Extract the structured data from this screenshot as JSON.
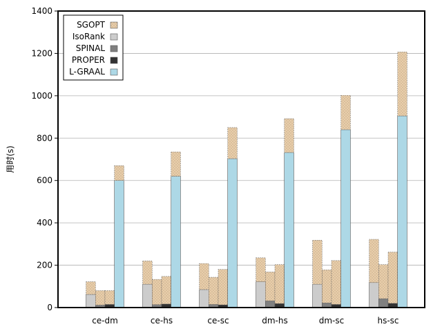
{
  "chart_data": {
    "type": "bar",
    "title": "",
    "xlabel": "",
    "ylabel": "用时(s)",
    "ylim": [
      0,
      1400
    ],
    "yticks": [
      0,
      200,
      400,
      600,
      800,
      1000,
      1200,
      1400
    ],
    "grid": "horizontal",
    "legend_position": "top-left",
    "categories": [
      "ce-dm",
      "ce-hs",
      "ce-sc",
      "dm-hs",
      "dm-sc",
      "hs-sc"
    ],
    "stacked_groups": [
      {
        "name": "group-1",
        "bottom": "IsoRank",
        "bottom_values": [
          62,
          110,
          85,
          122,
          110,
          118
        ],
        "top": "SGOPT",
        "total_values": [
          122,
          220,
          208,
          235,
          318,
          322
        ]
      },
      {
        "name": "group-2",
        "bottom": "SPINAL",
        "bottom_values": [
          12,
          14,
          15,
          32,
          22,
          42
        ],
        "top": "SGOPT",
        "total_values": [
          80,
          133,
          143,
          168,
          178,
          203
        ]
      },
      {
        "name": "group-3",
        "bottom": "PROPER",
        "bottom_values": [
          15,
          17,
          13,
          19,
          15,
          20
        ],
        "top": "SGOPT",
        "total_values": [
          80,
          147,
          180,
          203,
          222,
          262
        ]
      },
      {
        "name": "group-4",
        "bottom": "L-GRAAL",
        "bottom_values": [
          600,
          620,
          703,
          732,
          840,
          905
        ],
        "top": "SGOPT",
        "total_values": [
          670,
          735,
          850,
          892,
          1002,
          1207
        ]
      }
    ],
    "series": [
      {
        "name": "SGOPT",
        "color": "#e8ceab",
        "hatch": "dots"
      },
      {
        "name": "IsoRank",
        "color": "#cccccc"
      },
      {
        "name": "SPINAL",
        "color": "#808080"
      },
      {
        "name": "PROPER",
        "color": "#333333"
      },
      {
        "name": "L-GRAAL",
        "color": "#add8e6"
      }
    ]
  }
}
